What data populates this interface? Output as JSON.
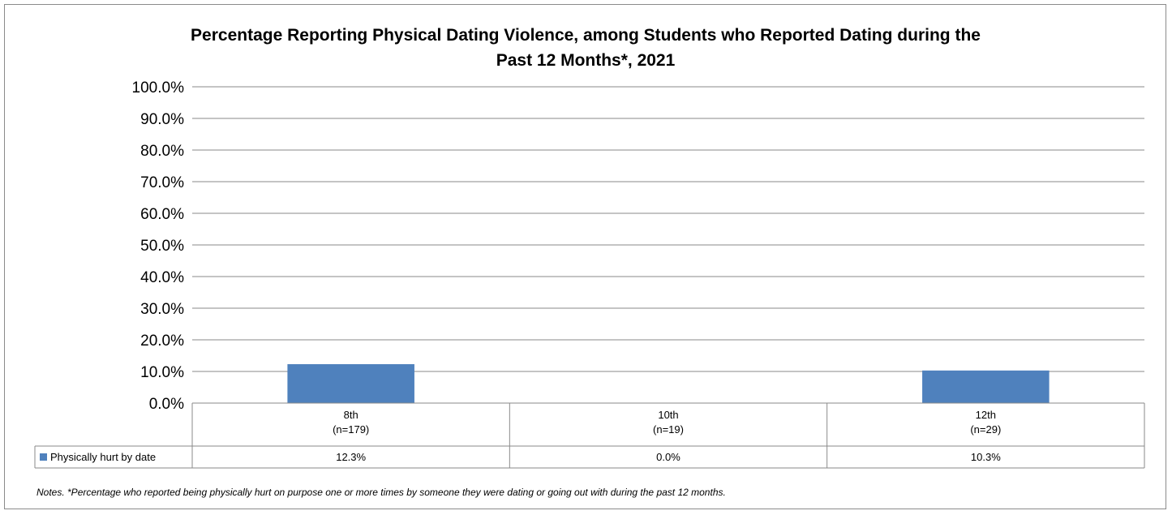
{
  "chart_data": {
    "type": "bar",
    "title_lines": [
      "Percentage Reporting Physical Dating Violence, among Students who Reported Dating during the",
      "Past 12 Months*, 2021"
    ],
    "categories": [
      [
        "8th",
        "(n=179)"
      ],
      [
        "10th",
        "(n=19)"
      ],
      [
        "12th",
        "(n=29)"
      ]
    ],
    "series": [
      {
        "name": "Physically hurt by date",
        "values": [
          12.3,
          0.0,
          10.3
        ],
        "value_labels": [
          "12.3%",
          "0.0%",
          "10.3%"
        ],
        "color": "#4f81bd"
      }
    ],
    "y_ticks": [
      "0.0%",
      "10.0%",
      "20.0%",
      "30.0%",
      "40.0%",
      "50.0%",
      "60.0%",
      "70.0%",
      "80.0%",
      "90.0%",
      "100.0%"
    ],
    "ylim": [
      0,
      100
    ],
    "grid": true,
    "legend_placement": "data-table",
    "note": "Notes. *Percentage who reported being physically hurt on purpose one or more times by someone they were dating or going out with during the past 12 months."
  }
}
